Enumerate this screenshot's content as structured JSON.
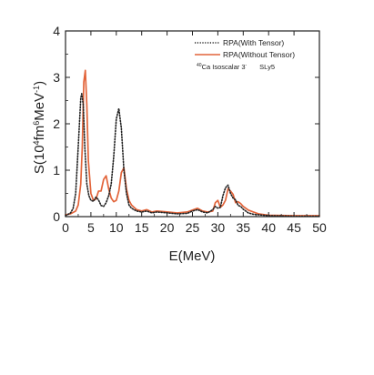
{
  "chart_data": {
    "type": "line",
    "xlabel": "E(MeV)",
    "ylabel": {
      "base": "S(10",
      "sup1": "4",
      "mid": "fm",
      "sup2": "6",
      "end": "MeV",
      "sup3": "-1",
      "close": ")"
    },
    "xlim": [
      0,
      50
    ],
    "ylim": [
      0,
      4
    ],
    "xticks": [
      0,
      5,
      10,
      15,
      20,
      25,
      30,
      35,
      40,
      45,
      50
    ],
    "yticks": [
      0,
      1,
      2,
      3,
      4
    ],
    "grid": false,
    "legend_position": "top-right",
    "annotation": {
      "sup": "40",
      "text": "Ca  Isoscalar 3",
      "sup2": "-",
      "model": "SLy5"
    },
    "series": [
      {
        "name": "RPA(With Tensor)",
        "color": "#222222",
        "style": "dotted",
        "x": [
          0,
          1,
          1.5,
          2,
          2.5,
          3,
          3.2,
          3.5,
          3.8,
          4.2,
          4.6,
          5,
          5.5,
          6,
          6.5,
          7,
          7.5,
          8,
          8.5,
          9,
          9.5,
          10,
          10.5,
          11,
          11.5,
          12,
          12.5,
          13,
          14,
          15,
          16,
          17,
          18,
          20,
          22,
          24,
          25,
          26,
          27,
          28,
          29,
          29.5,
          30,
          30.5,
          31,
          31.5,
          32,
          32.5,
          33,
          33.5,
          34,
          34.5,
          35,
          36,
          37,
          38,
          40,
          45,
          50
        ],
        "y": [
          0.02,
          0.08,
          0.18,
          0.5,
          1.5,
          2.55,
          2.65,
          2.4,
          1.5,
          0.7,
          0.45,
          0.35,
          0.33,
          0.42,
          0.36,
          0.24,
          0.22,
          0.3,
          0.45,
          0.7,
          1.3,
          2.1,
          2.33,
          1.9,
          1.0,
          0.5,
          0.25,
          0.18,
          0.12,
          0.1,
          0.12,
          0.08,
          0.1,
          0.08,
          0.06,
          0.07,
          0.12,
          0.15,
          0.1,
          0.08,
          0.15,
          0.22,
          0.18,
          0.2,
          0.45,
          0.62,
          0.68,
          0.5,
          0.4,
          0.36,
          0.24,
          0.22,
          0.16,
          0.08,
          0.05,
          0.04,
          0.02,
          0.01,
          0.01
        ]
      },
      {
        "name": "RPA(Without Tensor)",
        "color": "#e2643a",
        "style": "solid",
        "x": [
          0,
          1,
          2,
          2.5,
          3,
          3.3,
          3.6,
          3.9,
          4.2,
          4.5,
          5,
          5.5,
          6,
          6.5,
          7,
          7.5,
          8,
          8.5,
          9,
          9.5,
          10,
          10.5,
          11,
          11.5,
          12,
          12.5,
          13,
          14,
          15,
          16,
          17,
          18,
          20,
          22,
          24,
          25,
          26,
          27,
          28,
          29,
          29.5,
          30,
          30.5,
          31,
          31.5,
          32,
          32.5,
          33,
          33.5,
          34,
          34.5,
          35,
          36,
          37,
          38,
          40,
          45,
          50
        ],
        "y": [
          0.04,
          0.06,
          0.12,
          0.25,
          0.7,
          1.5,
          2.9,
          3.15,
          2.4,
          1.2,
          0.5,
          0.35,
          0.38,
          0.55,
          0.55,
          0.8,
          0.88,
          0.6,
          0.4,
          0.32,
          0.35,
          0.55,
          0.95,
          1.05,
          0.6,
          0.35,
          0.25,
          0.15,
          0.12,
          0.15,
          0.1,
          0.12,
          0.1,
          0.08,
          0.1,
          0.14,
          0.18,
          0.12,
          0.1,
          0.12,
          0.3,
          0.35,
          0.2,
          0.25,
          0.35,
          0.6,
          0.55,
          0.48,
          0.3,
          0.32,
          0.28,
          0.22,
          0.14,
          0.1,
          0.06,
          0.03,
          0.02,
          0.02
        ]
      }
    ]
  }
}
